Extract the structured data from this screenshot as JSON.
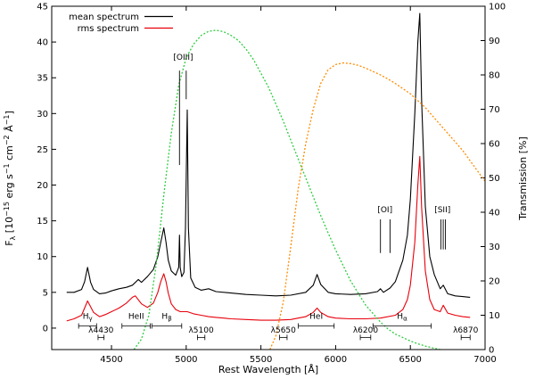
{
  "chart_data": {
    "type": "line",
    "xlabel": "Rest Wavelength [Å]",
    "ylabel": "F_λ [10^-15 erg s^-1 cm^-2 Å^-1]",
    "ylabel_parts": {
      "base": "F",
      "sub": "λ",
      "open": " [10",
      "exp1": "−15",
      "mid1": " erg s",
      "exp2": "−1",
      "mid2": " cm",
      "exp3": "−2",
      "mid3": " Å",
      "exp4": "−1",
      "close": "]"
    },
    "y2label": "Transmission [%]",
    "xlim": [
      4100,
      7000
    ],
    "ylim": [
      -3,
      45
    ],
    "y2lim": [
      0,
      100
    ],
    "xticks": [
      4500,
      5000,
      5500,
      6000,
      6500,
      7000
    ],
    "yticks": [
      0,
      5,
      10,
      15,
      20,
      25,
      30,
      35,
      40,
      45
    ],
    "y2ticks": [
      0,
      10,
      20,
      30,
      40,
      50,
      60,
      70,
      80,
      90,
      100
    ],
    "legend": [
      {
        "label": "mean spectrum",
        "color": "#000000"
      },
      {
        "label": "rms spectrum",
        "color": "#e8000b"
      }
    ],
    "series": [
      {
        "name": "mean spectrum",
        "color": "#000000",
        "axis": "left",
        "x": [
          4200,
          4250,
          4300,
          4320,
          4340,
          4360,
          4380,
          4420,
          4460,
          4500,
          4550,
          4600,
          4640,
          4680,
          4700,
          4740,
          4780,
          4810,
          4830,
          4850,
          4865,
          4880,
          4900,
          4930,
          4950,
          4955,
          4960,
          4970,
          4985,
          4995,
          5007,
          5015,
          5030,
          5060,
          5100,
          5150,
          5200,
          5300,
          5400,
          5500,
          5600,
          5700,
          5800,
          5850,
          5876,
          5900,
          5950,
          6000,
          6100,
          6200,
          6280,
          6300,
          6320,
          6364,
          6400,
          6450,
          6480,
          6500,
          6530,
          6550,
          6563,
          6575,
          6600,
          6630,
          6660,
          6700,
          6720,
          6750,
          6800,
          6850,
          6900
        ],
        "y": [
          5,
          5,
          5.4,
          6.5,
          8.5,
          6.4,
          5.4,
          4.8,
          4.9,
          5.2,
          5.5,
          5.7,
          6.0,
          6.8,
          6.4,
          7.2,
          8.2,
          10,
          12,
          14,
          12,
          9.5,
          8,
          7.4,
          8.5,
          13,
          8.5,
          7.2,
          7.8,
          14,
          30.5,
          14,
          7,
          5.7,
          5.3,
          5.5,
          5.1,
          4.9,
          4.7,
          4.6,
          4.5,
          4.6,
          5.0,
          6.0,
          7.5,
          6.1,
          5.0,
          4.8,
          4.7,
          4.8,
          5.1,
          5.5,
          5.0,
          5.6,
          6.5,
          9.5,
          13,
          18,
          30,
          40,
          44,
          32,
          17,
          10,
          7.5,
          5.5,
          6.0,
          4.8,
          4.5,
          4.4,
          4.3
        ]
      },
      {
        "name": "rms spectrum",
        "color": "#e8000b",
        "axis": "left",
        "x": [
          4200,
          4250,
          4300,
          4340,
          4380,
          4420,
          4460,
          4500,
          4550,
          4600,
          4640,
          4660,
          4700,
          4740,
          4780,
          4810,
          4830,
          4850,
          4865,
          4880,
          4900,
          4930,
          4960,
          5007,
          5050,
          5100,
          5150,
          5200,
          5300,
          5400,
          5500,
          5600,
          5700,
          5800,
          5850,
          5876,
          5900,
          5950,
          6000,
          6100,
          6200,
          6300,
          6400,
          6450,
          6480,
          6500,
          6530,
          6550,
          6563,
          6575,
          6600,
          6630,
          6660,
          6700,
          6720,
          6750,
          6800,
          6850,
          6900
        ],
        "y": [
          1,
          1.3,
          1.8,
          3.8,
          2.2,
          1.6,
          1.9,
          2.3,
          2.8,
          3.5,
          4.3,
          4.5,
          3.4,
          2.9,
          3.5,
          5,
          6.5,
          7.6,
          6.5,
          4.9,
          3.4,
          2.6,
          2.3,
          2.3,
          2.0,
          1.8,
          1.6,
          1.5,
          1.3,
          1.2,
          1.1,
          1.1,
          1.2,
          1.6,
          2.2,
          2.8,
          2.2,
          1.6,
          1.4,
          1.3,
          1.3,
          1.4,
          1.8,
          2.6,
          4,
          6,
          12,
          20,
          24,
          17,
          8,
          4,
          2.6,
          2.3,
          3.2,
          2.1,
          1.8,
          1.6,
          1.5
        ]
      },
      {
        "name": "green filter transmission",
        "color": "#2ecc40",
        "axis": "right",
        "x": [
          4650,
          4700,
          4750,
          4800,
          4850,
          4900,
          4950,
          5000,
          5050,
          5100,
          5150,
          5200,
          5250,
          5300,
          5350,
          5400,
          5450,
          5500,
          5550,
          5600,
          5650,
          5700,
          5750,
          5800,
          5850,
          5900,
          5950,
          6000,
          6050,
          6100,
          6150,
          6200,
          6250,
          6300,
          6350,
          6400,
          6450,
          6500,
          6550,
          6600,
          6650,
          6700
        ],
        "y": [
          0,
          3,
          10,
          25,
          45,
          63,
          77,
          85,
          89,
          91.5,
          92.7,
          93,
          92.6,
          91.5,
          90,
          87.5,
          84.5,
          80.5,
          76.5,
          71.5,
          66.5,
          61,
          55.5,
          50,
          44.5,
          39,
          34,
          29,
          24.5,
          20,
          16.5,
          13,
          10.5,
          8,
          6,
          4.5,
          3.5,
          2.5,
          1.7,
          1,
          0.5,
          0
        ]
      },
      {
        "name": "orange filter transmission",
        "color": "#ff8c00",
        "axis": "right",
        "x": [
          5560,
          5600,
          5650,
          5700,
          5750,
          5800,
          5850,
          5900,
          5950,
          6000,
          6050,
          6100,
          6150,
          6200,
          6250,
          6300,
          6350,
          6400,
          6450,
          6500,
          6550,
          6600,
          6650,
          6700,
          6750,
          6800,
          6850,
          6900,
          6950,
          7000
        ],
        "y": [
          0,
          4,
          14,
          30,
          47,
          60,
          70,
          77.5,
          81.5,
          83,
          83.5,
          83.3,
          82.8,
          82,
          81,
          80,
          78.8,
          77.5,
          76,
          74.5,
          72.5,
          70.5,
          68,
          65.5,
          63,
          60.5,
          58,
          55,
          52,
          49
        ]
      }
    ],
    "annotations": {
      "oiii": {
        "label": "[OIII]",
        "label_x": 4980,
        "label_y": 37.5,
        "lines": [
          {
            "x": 4955,
            "y1": 22.8,
            "y2": 36.0
          },
          {
            "x": 5000,
            "y1": 32.0,
            "y2": 36.0
          }
        ]
      },
      "oi": {
        "label": "[OI]",
        "label_x": 6330,
        "label_y": 16.2,
        "lines": [
          {
            "x": 6300,
            "y1": 10.5,
            "y2": 15.2
          },
          {
            "x": 6364,
            "y1": 10.5,
            "y2": 15.2
          }
        ]
      },
      "sii": {
        "label": "[SII]",
        "label_x": 6715,
        "label_y": 16.2,
        "lines": [
          {
            "x": 6705,
            "y1": 11.0,
            "y2": 15.2
          },
          {
            "x": 6720,
            "y1": 11.0,
            "y2": 15.2
          },
          {
            "x": 6735,
            "y1": 11.0,
            "y2": 15.2
          }
        ]
      },
      "line_ranges": [
        {
          "label": "H",
          "sub": "γ",
          "x1": 4280,
          "x2": 4400,
          "y": 0.3,
          "label_y": 1.3
        },
        {
          "label": "HeII",
          "sub": "",
          "x1": 4570,
          "x2": 4760,
          "y": 0.3,
          "label_y": 1.3
        },
        {
          "label": "H",
          "sub": "β",
          "x1": 4770,
          "x2": 4970,
          "y": 0.3,
          "label_y": 1.3
        },
        {
          "label": "HeI",
          "sub": "",
          "x1": 5750,
          "x2": 5990,
          "y": 0.3,
          "label_y": 1.3
        },
        {
          "label": "H",
          "sub": "α",
          "x1": 6250,
          "x2": 6640,
          "y": 0.3,
          "label_y": 1.3
        }
      ],
      "continuum_windows": [
        {
          "label": "λ4430",
          "x1": 4410,
          "x2": 4450,
          "y": -1.3,
          "label_y": -0.6
        },
        {
          "label": "λ5100",
          "x1": 5075,
          "x2": 5125,
          "y": -1.3,
          "label_y": -0.6
        },
        {
          "label": "λ5650",
          "x1": 5625,
          "x2": 5675,
          "y": -1.3,
          "label_y": -0.6
        },
        {
          "label": "λ6200",
          "x1": 6165,
          "x2": 6235,
          "y": -1.3,
          "label_y": -0.6
        },
        {
          "label": "λ6870",
          "x1": 6840,
          "x2": 6900,
          "y": -1.3,
          "label_y": -0.6
        }
      ]
    }
  }
}
